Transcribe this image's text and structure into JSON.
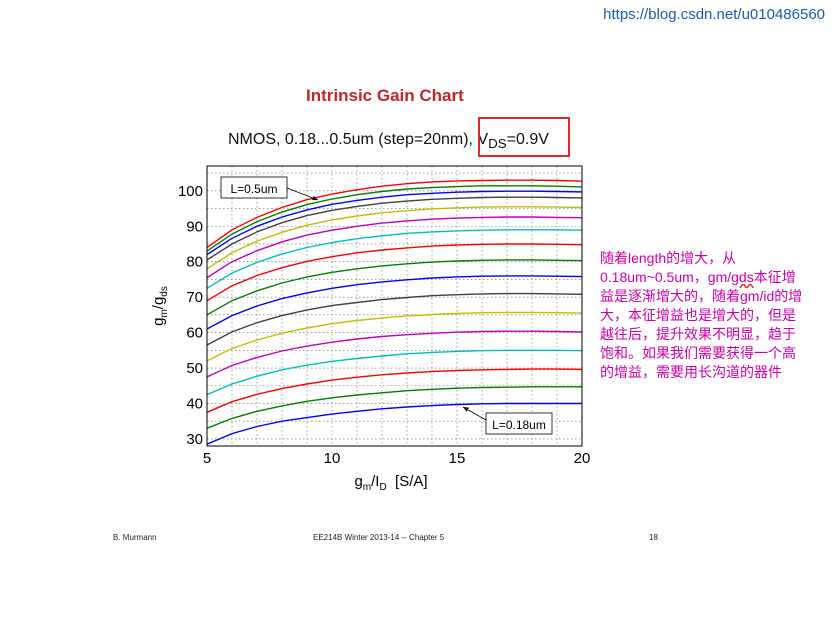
{
  "watermark_url": "https://blog.csdn.net/u010486560",
  "slide_title": "Intrinsic Gain Chart",
  "footer": {
    "left": "B. Murmann",
    "center": "EE214B Winter 2013-14 -- Chapter 5",
    "right": "18"
  },
  "annotation": {
    "part1": "随着length的增大，从0.18um~0.5um，gm/",
    "underlined": "gds",
    "part2": "本征增益是逐渐增大的，随着gm/id的增大，本征增益也是增大的，但是越往后，提升效果不明显，趋于饱和。如果我们需要获得一个高的增益，需要用长沟道的器件"
  },
  "colors": {
    "title": "#c0262a",
    "highlight_box": "#e32622",
    "annotation_text": "#cc00a8",
    "url": "#1a5bb5"
  },
  "chart_data": {
    "type": "line",
    "subtitle_prefix": "NMOS, 0.18...0.5um (step=20nm), V",
    "subtitle_sub": "DS",
    "subtitle_suffix": "=0.9V",
    "xlabel": {
      "main": "g",
      "sub1": "m",
      "slash": "/I",
      "sub2": "D",
      "unit": "  [S/A]"
    },
    "ylabel": {
      "main": "g",
      "sub1": "m",
      "slash": "/g",
      "sub2": "ds"
    },
    "xlim": [
      5,
      20
    ],
    "ylim": [
      28,
      107
    ],
    "x_ticks": [
      "5",
      "10",
      "15",
      "20"
    ],
    "y_ticks": [
      "30",
      "40",
      "50",
      "60",
      "70",
      "80",
      "90",
      "100"
    ],
    "grid": true,
    "x": [
      5,
      6,
      7,
      8,
      9,
      10,
      11,
      12,
      13,
      14,
      15,
      16,
      17,
      18,
      19,
      20
    ],
    "label_top": "L=0.5um",
    "label_bottom": "L=0.18um",
    "series": [
      {
        "color": "#0000ff",
        "values": [
          28.5,
          31.5,
          33.5,
          35,
          36,
          37,
          37.8,
          38.5,
          39,
          39.4,
          39.7,
          39.9,
          40,
          40,
          40,
          40
        ]
      },
      {
        "color": "#008000",
        "values": [
          33,
          35.8,
          37.8,
          39.3,
          40.6,
          41.6,
          42.4,
          43,
          43.6,
          44,
          44.3,
          44.5,
          44.6,
          44.7,
          44.7,
          44.7
        ]
      },
      {
        "color": "#ff0000",
        "values": [
          37.5,
          40.5,
          42.6,
          44.2,
          45.5,
          46.6,
          47.4,
          48.1,
          48.6,
          49,
          49.3,
          49.5,
          49.6,
          49.7,
          49.7,
          49.6
        ]
      },
      {
        "color": "#00bfbf",
        "values": [
          42.5,
          45.5,
          47.7,
          49.5,
          50.8,
          51.9,
          52.7,
          53.4,
          54,
          54.4,
          54.7,
          54.9,
          55,
          55,
          55,
          54.9
        ]
      },
      {
        "color": "#bf00bf",
        "values": [
          47.5,
          50.7,
          53,
          54.8,
          56.2,
          57.3,
          58.2,
          58.9,
          59.4,
          59.8,
          60.1,
          60.3,
          60.4,
          60.4,
          60.3,
          60.2
        ]
      },
      {
        "color": "#bfbf00",
        "values": [
          52,
          55.5,
          57.9,
          59.8,
          61.3,
          62.5,
          63.4,
          64.1,
          64.7,
          65.1,
          65.4,
          65.6,
          65.7,
          65.7,
          65.6,
          65.5
        ]
      },
      {
        "color": "#404040",
        "values": [
          56.5,
          60.2,
          62.8,
          64.8,
          66.4,
          67.6,
          68.5,
          69.3,
          69.9,
          70.4,
          70.7,
          70.9,
          71,
          71,
          70.9,
          70.8
        ]
      },
      {
        "color": "#0000ff",
        "values": [
          61,
          64.8,
          67.5,
          69.6,
          71.2,
          72.5,
          73.5,
          74.3,
          74.9,
          75.4,
          75.7,
          75.9,
          76,
          76,
          75.9,
          75.8
        ]
      },
      {
        "color": "#008000",
        "values": [
          65,
          69,
          71.8,
          74,
          75.7,
          77,
          78,
          78.8,
          79.4,
          79.9,
          80.2,
          80.4,
          80.5,
          80.5,
          80.4,
          80.3
        ]
      },
      {
        "color": "#ff0000",
        "values": [
          69,
          73.2,
          76.1,
          78.3,
          80.1,
          81.4,
          82.5,
          83.3,
          83.9,
          84.4,
          84.7,
          84.9,
          85,
          85,
          84.9,
          84.8
        ]
      },
      {
        "color": "#00bfbf",
        "values": [
          72.5,
          76.8,
          79.8,
          82.2,
          84,
          85.4,
          86.5,
          87.3,
          88,
          88.4,
          88.7,
          88.9,
          89,
          89,
          89,
          88.9
        ]
      },
      {
        "color": "#bf00bf",
        "values": [
          75.5,
          80,
          83.1,
          85.6,
          87.5,
          88.9,
          90,
          90.9,
          91.5,
          92,
          92.3,
          92.5,
          92.6,
          92.6,
          92.5,
          92.4
        ]
      },
      {
        "color": "#bfbf00",
        "values": [
          78,
          82.5,
          85.8,
          88.3,
          90.3,
          91.8,
          92.9,
          93.8,
          94.4,
          94.9,
          95.2,
          95.4,
          95.5,
          95.5,
          95.4,
          95.3
        ]
      },
      {
        "color": "#404040",
        "values": [
          80.5,
          85,
          88.4,
          91,
          93,
          94.5,
          95.6,
          96.5,
          97.1,
          97.6,
          97.9,
          98.1,
          98.2,
          98.2,
          98.1,
          98
        ]
      },
      {
        "color": "#0000ff",
        "values": [
          82,
          86.6,
          90,
          92.6,
          94.6,
          96.2,
          97.3,
          98.2,
          98.9,
          99.3,
          99.6,
          99.8,
          99.9,
          99.9,
          99.8,
          99.7
        ]
      },
      {
        "color": "#008000",
        "values": [
          83,
          87.8,
          91.3,
          94,
          96.1,
          97.7,
          98.9,
          99.8,
          100.5,
          100.9,
          101.2,
          101.4,
          101.4,
          101.4,
          101.3,
          101.1
        ]
      },
      {
        "color": "#ff0000",
        "values": [
          84,
          89,
          92.5,
          95.3,
          97.5,
          99.1,
          100.3,
          101.3,
          102,
          102.5,
          102.8,
          102.9,
          103,
          103,
          102.9,
          102.7
        ]
      }
    ]
  }
}
